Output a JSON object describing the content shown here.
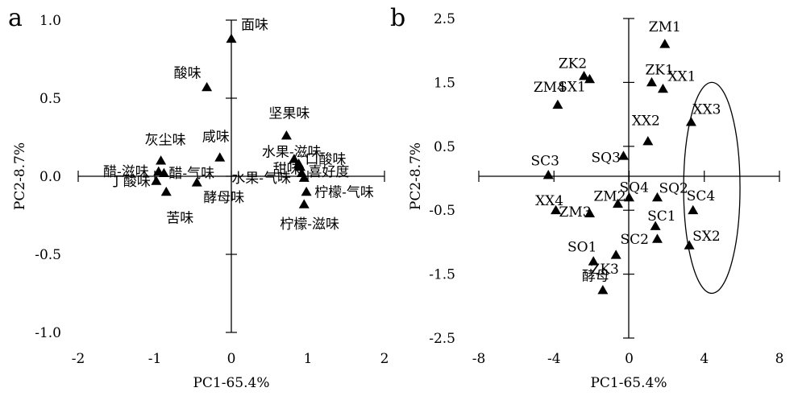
{
  "figure": {
    "panels": [
      "a",
      "b"
    ]
  },
  "chart_data": [
    {
      "panel": "a",
      "type": "scatter",
      "xlabel": "PC1-65.4%",
      "ylabel": "PC2-8.7%",
      "xlim": [
        -2,
        2
      ],
      "ylim": [
        -1.0,
        1.0
      ],
      "xticks": [
        "-2",
        "-1",
        "0",
        "1",
        "2"
      ],
      "yticks": [
        "-1.0",
        "-0.5",
        "0.0",
        "0.5",
        "1.0"
      ],
      "grid": false,
      "marker": "triangle",
      "points": [
        {
          "label": "面味",
          "x": 0.0,
          "y": 0.88
        },
        {
          "label": "酸味",
          "x": -0.32,
          "y": 0.57
        },
        {
          "label": "坚果味",
          "x": 0.72,
          "y": 0.26
        },
        {
          "label": "咸味",
          "x": -0.15,
          "y": 0.12
        },
        {
          "label": "灰尘味",
          "x": -0.92,
          "y": 0.1
        },
        {
          "label": "水果-滋味",
          "x": 0.82,
          "y": 0.11
        },
        {
          "label": "甜味",
          "x": 0.88,
          "y": 0.08
        },
        {
          "label": "口酸味",
          "x": 0.9,
          "y": 0.06
        },
        {
          "label": "醋-滋味",
          "x": -0.95,
          "y": 0.03
        },
        {
          "label": "醋-气味",
          "x": -0.88,
          "y": 0.02
        },
        {
          "label": "喜好度",
          "x": 0.92,
          "y": 0.02
        },
        {
          "label": "水果-气味",
          "x": 0.95,
          "y": -0.01
        },
        {
          "label": "丁酸味",
          "x": -0.98,
          "y": -0.03
        },
        {
          "label": "酵母味",
          "x": -0.45,
          "y": -0.04
        },
        {
          "label": "柠檬-气味",
          "x": 0.98,
          "y": -0.1
        },
        {
          "label": "苦味",
          "x": -0.85,
          "y": -0.1
        },
        {
          "label": "柠檬-滋味",
          "x": 0.95,
          "y": -0.18
        }
      ]
    },
    {
      "panel": "b",
      "type": "scatter",
      "xlabel": "PC1-65.4%",
      "ylabel": "PC2-8.7%",
      "xlim": [
        -8,
        8
      ],
      "ylim": [
        -2.5,
        2.5
      ],
      "xticks": [
        "-8",
        "-4",
        "0",
        "4",
        "8"
      ],
      "yticks": [
        "-2.5",
        "-1.5",
        "-0.5",
        "0.5",
        "1.5",
        "2.5"
      ],
      "grid": false,
      "marker": "triangle",
      "points": [
        {
          "label": "ZM1",
          "x": 1.9,
          "y": 2.1
        },
        {
          "label": "ZK2",
          "x": -2.4,
          "y": 1.6
        },
        {
          "label": "ZK1",
          "x": 1.2,
          "y": 1.5
        },
        {
          "label": "SX1",
          "x": -2.1,
          "y": 1.55
        },
        {
          "label": "XX1",
          "x": 1.8,
          "y": 1.4
        },
        {
          "label": "ZM4",
          "x": -3.8,
          "y": 1.15
        },
        {
          "label": "XX3",
          "x": 3.3,
          "y": 0.88
        },
        {
          "label": "XX2",
          "x": 1.0,
          "y": 0.58
        },
        {
          "label": "SQ3",
          "x": -0.3,
          "y": 0.35
        },
        {
          "label": "SC3",
          "x": -4.3,
          "y": 0.05
        },
        {
          "label": "SQ4",
          "x": 0.0,
          "y": -0.3
        },
        {
          "label": "SQ2",
          "x": 1.5,
          "y": -0.3
        },
        {
          "label": "ZM2",
          "x": -0.6,
          "y": -0.4
        },
        {
          "label": "XX4",
          "x": -3.9,
          "y": -0.5
        },
        {
          "label": "SC4",
          "x": 3.4,
          "y": -0.5
        },
        {
          "label": "ZM3",
          "x": -2.1,
          "y": -0.55
        },
        {
          "label": "SC1",
          "x": 1.4,
          "y": -0.75
        },
        {
          "label": "SC2",
          "x": 1.5,
          "y": -0.95
        },
        {
          "label": "SX2",
          "x": 3.2,
          "y": -1.05
        },
        {
          "label": "SO1",
          "x": -1.9,
          "y": -1.3
        },
        {
          "label": "ZK3",
          "x": -0.7,
          "y": -1.2
        },
        {
          "label": "酵母",
          "x": -1.4,
          "y": -1.75
        }
      ],
      "annotations": [
        {
          "type": "ellipse",
          "center": [
            4.4,
            -0.15
          ],
          "radii": [
            1.5,
            1.65
          ]
        }
      ]
    }
  ]
}
